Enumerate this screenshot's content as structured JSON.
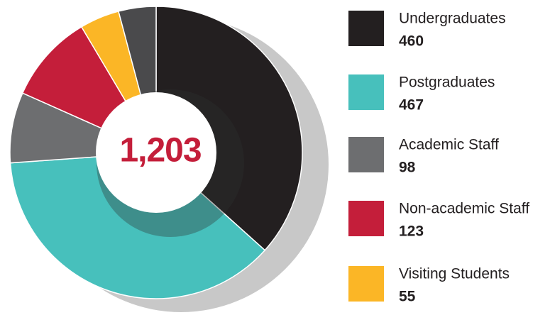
{
  "chart_data": {
    "type": "donut",
    "center_label": "1,203",
    "categories": [
      "Undergraduates",
      "Postgraduates",
      "Academic Staff",
      "Non-academic Staff",
      "Visiting Students",
      null
    ],
    "values": [
      460,
      467,
      98,
      123,
      55,
      52
    ],
    "colors": [
      "#231f20",
      "#47c0bc",
      "#6d6e70",
      "#c41e3a",
      "#fbb626",
      "#4a4a4c"
    ]
  }
}
